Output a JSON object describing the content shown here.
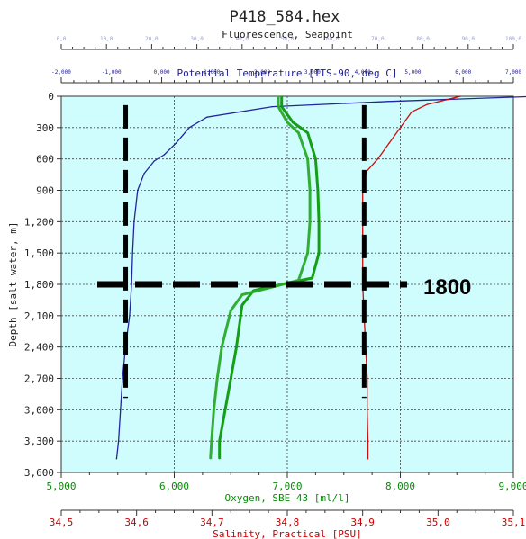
{
  "chart_data": {
    "type": "line",
    "title": "P418_584.hex",
    "y_axis": {
      "label": "Depth [salt water, m]",
      "range": [
        0,
        3600
      ],
      "reversed": true,
      "ticks": [
        "0",
        "300",
        "600",
        "900",
        "1,200",
        "1,500",
        "1,800",
        "2,100",
        "2,400",
        "2,700",
        "3,000",
        "3,300",
        "3,600"
      ]
    },
    "x_axes": [
      {
        "id": "fluorescence",
        "position": "top-1",
        "label": "Fluorescence, Seapoint",
        "range": [
          0,
          100
        ],
        "ticks": [
          "0,0",
          "10,0",
          "20,0",
          "30,0",
          "40,0",
          "50,0",
          "60,0",
          "70,0",
          "80,0",
          "90,0",
          "100,0"
        ],
        "color": "#9aa0c8"
      },
      {
        "id": "temperature",
        "position": "top-2",
        "label": "Potential Temperature [ITS-90, deg C]",
        "range": [
          -2,
          7
        ],
        "ticks": [
          "-2,000",
          "-1,000",
          "0,000",
          "1,000",
          "2,000",
          "3,000",
          "4,000",
          "5,000",
          "6,000",
          "7,000"
        ],
        "color": "#1a1a9a"
      },
      {
        "id": "oxygen",
        "position": "bottom-1",
        "label": "Oxygen, SBE 43 [ml/l]",
        "range": [
          5,
          9
        ],
        "ticks": [
          "5,000",
          "6,000",
          "7,000",
          "8,000",
          "9,000"
        ],
        "color": "#0a8a0a"
      },
      {
        "id": "salinity",
        "position": "bottom-2",
        "label": "Salinity, Practical [PSU]",
        "range": [
          34.5,
          35.1
        ],
        "ticks": [
          "34,5",
          "34,6",
          "34,7",
          "34,8",
          "34,9",
          "35,0",
          "35,1"
        ],
        "color": "#cc0000"
      }
    ],
    "series": [
      {
        "axis": "temperature",
        "color": "#1a1a9a",
        "points": [
          [
            7.5,
            0
          ],
          [
            4.5,
            50
          ],
          [
            2.2,
            100
          ],
          [
            0.9,
            200
          ],
          [
            0.55,
            300
          ],
          [
            0.28,
            450
          ],
          [
            0.05,
            560
          ],
          [
            -0.15,
            620
          ],
          [
            -0.35,
            740
          ],
          [
            -0.48,
            900
          ],
          [
            -0.55,
            1200
          ],
          [
            -0.58,
            1500
          ],
          [
            -0.6,
            1800
          ],
          [
            -0.64,
            2100
          ],
          [
            -0.72,
            2400
          ],
          [
            -0.78,
            2700
          ],
          [
            -0.82,
            3000
          ],
          [
            -0.86,
            3300
          ],
          [
            -0.9,
            3470
          ]
        ]
      },
      {
        "axis": "oxygen",
        "color": "#0a9a0a",
        "points": [
          [
            6.95,
            0
          ],
          [
            6.95,
            100
          ],
          [
            7.05,
            250
          ],
          [
            7.18,
            350
          ],
          [
            7.25,
            600
          ],
          [
            7.27,
            900
          ],
          [
            7.28,
            1200
          ],
          [
            7.28,
            1500
          ],
          [
            7.22,
            1740
          ],
          [
            6.95,
            1800
          ],
          [
            6.7,
            1860
          ],
          [
            6.6,
            2000
          ],
          [
            6.55,
            2400
          ],
          [
            6.5,
            2700
          ],
          [
            6.45,
            3000
          ],
          [
            6.4,
            3300
          ],
          [
            6.4,
            3470
          ]
        ]
      },
      {
        "axis": "oxygen",
        "color": "#2aaa2a",
        "points": [
          [
            6.92,
            0
          ],
          [
            6.92,
            100
          ],
          [
            7.0,
            250
          ],
          [
            7.1,
            350
          ],
          [
            7.18,
            600
          ],
          [
            7.2,
            900
          ],
          [
            7.2,
            1200
          ],
          [
            7.18,
            1500
          ],
          [
            7.1,
            1760
          ],
          [
            6.85,
            1830
          ],
          [
            6.6,
            1900
          ],
          [
            6.5,
            2050
          ],
          [
            6.42,
            2400
          ],
          [
            6.38,
            2700
          ],
          [
            6.35,
            3000
          ],
          [
            6.33,
            3300
          ],
          [
            6.32,
            3470
          ]
        ]
      },
      {
        "axis": "salinity",
        "color": "#cc0000",
        "points": [
          [
            35.03,
            0
          ],
          [
            34.985,
            80
          ],
          [
            34.965,
            150
          ],
          [
            34.955,
            250
          ],
          [
            34.935,
            450
          ],
          [
            34.92,
            600
          ],
          [
            34.905,
            720
          ],
          [
            34.9,
            900
          ],
          [
            34.9,
            1200
          ],
          [
            34.9,
            1500
          ],
          [
            34.9,
            1800
          ],
          [
            34.902,
            2100
          ],
          [
            34.904,
            2400
          ],
          [
            34.906,
            2700
          ],
          [
            34.906,
            3000
          ],
          [
            34.907,
            3300
          ],
          [
            34.907,
            3470
          ]
        ]
      }
    ],
    "annotations": [
      {
        "kind": "hline",
        "y": 1800,
        "label": "1800"
      },
      {
        "kind": "vline",
        "axis": "oxygen",
        "x": 5.57,
        "y_range": [
          300,
          2500
        ]
      },
      {
        "kind": "vline",
        "axis": "oxygen",
        "x": 7.68,
        "y_range": [
          300,
          2500
        ]
      }
    ],
    "grid": true,
    "background": "#cffcfc"
  }
}
